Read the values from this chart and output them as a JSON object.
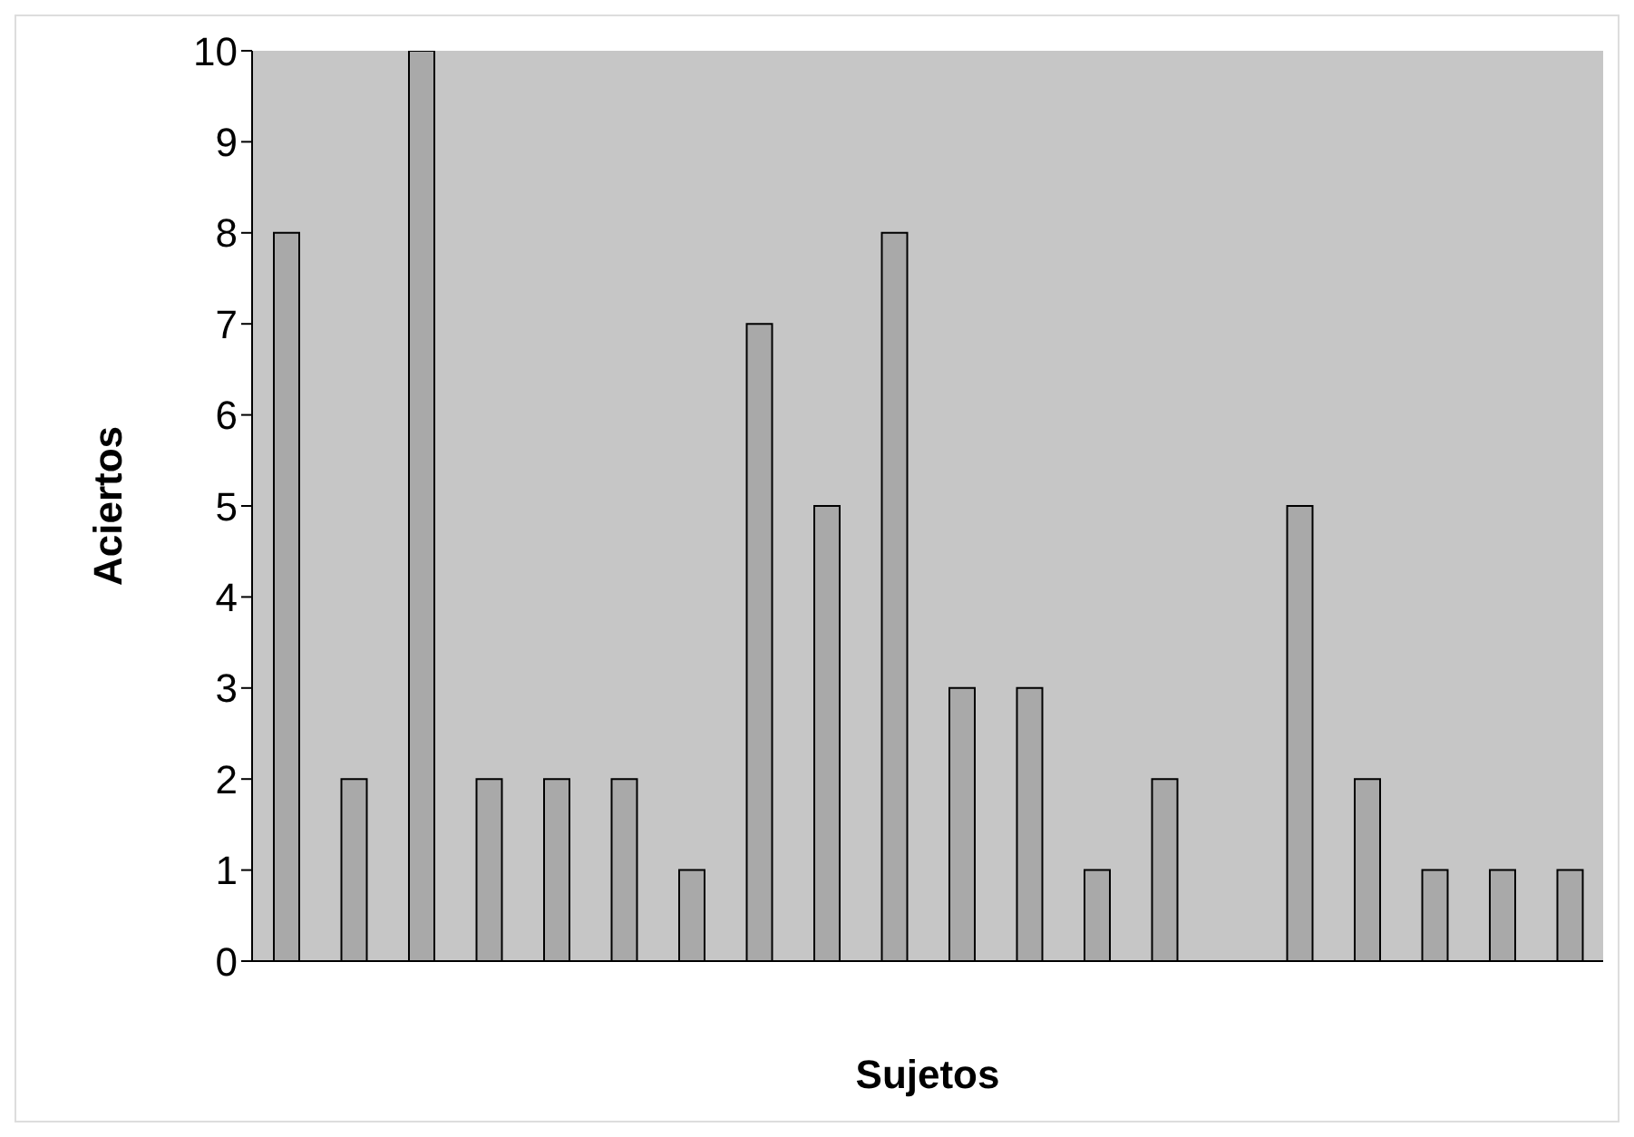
{
  "chart_data": {
    "type": "bar",
    "xlabel": "Sujetos",
    "ylabel": "Aciertos",
    "categories": [
      null,
      null,
      null,
      null,
      null,
      null,
      null,
      null,
      null,
      null,
      null,
      null,
      null,
      null,
      null,
      null,
      null,
      null,
      null,
      null
    ],
    "values": [
      8,
      2,
      10,
      2,
      2,
      2,
      1,
      7,
      5,
      8,
      3,
      3,
      1,
      2,
      0,
      5,
      2,
      1,
      1,
      1
    ],
    "color": "#a9a9a9",
    "ylim": [
      0,
      10
    ],
    "yticks": [
      0,
      1,
      2,
      3,
      4,
      5,
      6,
      7,
      8,
      9,
      10
    ],
    "tick_labels": "y"
  }
}
